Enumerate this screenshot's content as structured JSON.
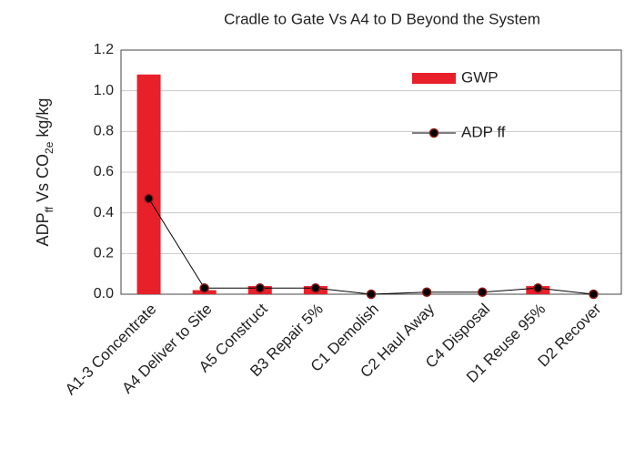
{
  "chart_data": {
    "type": "bar",
    "title": "Cradle to Gate Vs A4 to D Beyond the System",
    "ylabel": [
      {
        "text": "ADP"
      },
      {
        "text": "ff",
        "sub": true
      },
      {
        "text": " Vs CO"
      },
      {
        "text": "2e",
        "sub": true
      },
      {
        "text": " kg/kg"
      }
    ],
    "categories": [
      "A1-3 Concentrate",
      "A4 Deliver to Site",
      "A5 Construct",
      "B3 Repair 5%",
      "C1 Demolish",
      "C2 Haul Away",
      "C4 Disposal",
      "D1 Reuse 95%",
      "D2 Recover"
    ],
    "series": [
      {
        "name": "GWP",
        "type": "bar",
        "color": "#e8202a",
        "values": [
          1.08,
          0.02,
          0.04,
          0.04,
          0.0,
          0.0,
          0.0,
          0.04,
          0.0
        ]
      },
      {
        "name": "ADP ff",
        "type": "line",
        "color": "#000000",
        "values": [
          0.47,
          0.03,
          0.03,
          0.03,
          0.0,
          0.01,
          0.01,
          0.03,
          0.0
        ]
      }
    ],
    "ylim": [
      0,
      1.2
    ],
    "yticks": [
      {
        "value": 0,
        "label": "0.0"
      },
      0.2,
      0.4,
      0.6,
      0.8,
      {
        "value": 1,
        "label": "1.0"
      },
      1.2
    ],
    "grid": true,
    "legend": "top-right"
  }
}
